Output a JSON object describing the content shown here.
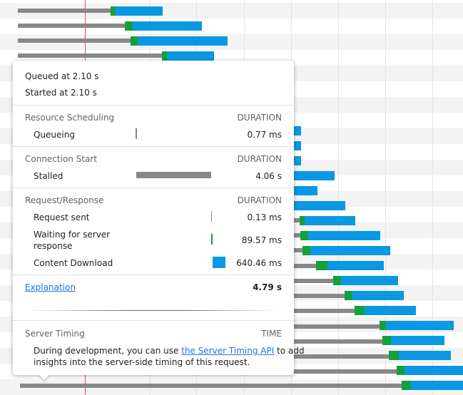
{
  "tooltip": {
    "queued_at": "Queued at 2.10 s",
    "started_at": "Started at 2.10 s",
    "sections": [
      {
        "title": "Resource Scheduling",
        "duration_header": "DURATION",
        "rows": [
          {
            "label": "Queueing",
            "duration": "0.77 ms"
          }
        ]
      },
      {
        "title": "Connection Start",
        "duration_header": "DURATION",
        "rows": [
          {
            "label": "Stalled",
            "duration": "4.06 s"
          }
        ]
      },
      {
        "title": "Request/Response",
        "duration_header": "DURATION",
        "rows": [
          {
            "label": "Request sent",
            "duration": "0.13 ms"
          },
          {
            "label": "Waiting for server",
            "label2": "response",
            "duration": "89.57 ms"
          },
          {
            "label": "Content Download",
            "duration": "640.46 ms"
          }
        ]
      }
    ],
    "explanation_link": "Explanation",
    "total": "4.79 s",
    "server_timing": {
      "title": "Server Timing",
      "time_header": "TIME",
      "text_before": "During development, you can use ",
      "link_text": "the Server Timing API",
      "text_after": " to add",
      "text_line2": "insights into the server-side timing of this request."
    }
  },
  "colors": {
    "stalled": "#888888",
    "waiting": "#13a03e",
    "download": "#0b98e3",
    "link": "#1a73e8",
    "marker": "#e05050"
  }
}
